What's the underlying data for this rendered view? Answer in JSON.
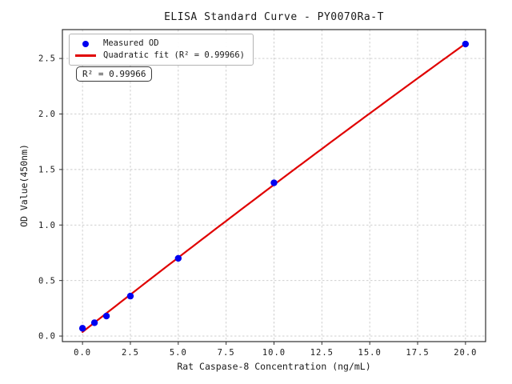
{
  "figure": {
    "title": "ELISA Standard Curve - PY0070Ra-T"
  },
  "legend": {
    "items": [
      {
        "label": "Measured OD",
        "marker": "dot",
        "color": "#0000f0"
      },
      {
        "label": "Quadratic fit (R² = 0.99966)",
        "marker": "line",
        "color": "#e00000"
      }
    ]
  },
  "annotation": {
    "r_squared": "R² = 0.99966"
  },
  "chart_data": {
    "type": "scatter",
    "title": "ELISA Standard Curve - PY0070Ra-T",
    "xlabel": "Rat Caspase-8 Concentration (ng/mL)",
    "ylabel": "OD Value(450nm)",
    "series": [
      {
        "name": "Measured OD",
        "type": "scatter",
        "x": [
          0,
          0.625,
          1.25,
          2.5,
          5,
          10,
          20
        ],
        "y": [
          0.07,
          0.12,
          0.18,
          0.36,
          0.7,
          1.38,
          2.63
        ],
        "color": "#0000f0"
      },
      {
        "name": "Quadratic fit (R² = 0.99966)",
        "type": "line",
        "fit": "quadratic",
        "r_squared": 0.99966,
        "x_range": [
          0,
          20
        ],
        "color": "#e00000"
      }
    ],
    "xlim": [
      -1.05,
      21.05
    ],
    "ylim": [
      -0.05,
      2.76
    ],
    "xticks": [
      0,
      2.5,
      5,
      7.5,
      10,
      12.5,
      15,
      17.5,
      20
    ],
    "xtick_labels": [
      "0.0",
      "2.5",
      "5.0",
      "7.5",
      "10.0",
      "12.5",
      "15.0",
      "17.5",
      "20.0"
    ],
    "yticks": [
      0,
      0.5,
      1,
      1.5,
      2,
      2.5
    ],
    "ytick_labels": [
      "0.0",
      "0.5",
      "1.0",
      "1.5",
      "2.0",
      "2.5"
    ],
    "grid": true,
    "legend_position": "upper left",
    "colors": {
      "grid": "#c9c9c9",
      "spine": "#2f2f2f",
      "tick_text": "#1a1a1a"
    }
  }
}
